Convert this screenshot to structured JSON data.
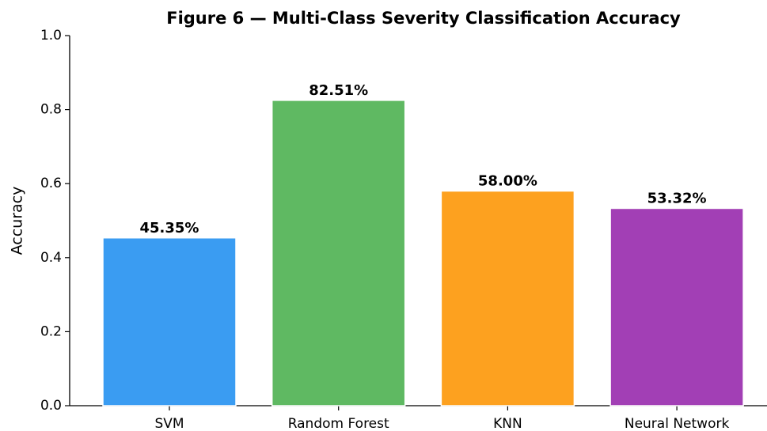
{
  "chart_data": {
    "type": "bar",
    "title": "Figure 6 — Multi-Class Severity Classification Accuracy",
    "ylabel": "Accuracy",
    "categories": [
      "SVM",
      "Random Forest",
      "KNN",
      "Neural Network"
    ],
    "values": [
      0.4535,
      0.8251,
      0.58,
      0.5332
    ],
    "value_labels": [
      "45.35%",
      "82.51%",
      "58.00%",
      "53.32%"
    ],
    "colors": [
      "#3a9cf2",
      "#5fb962",
      "#fda11f",
      "#a23fb5"
    ],
    "ylim": [
      0,
      1
    ],
    "yticks": [
      {
        "value": 0,
        "label": "0.0"
      },
      0.2,
      0.4,
      0.6,
      0.8,
      {
        "value": 1,
        "label": "1.0"
      }
    ],
    "grid": false
  }
}
